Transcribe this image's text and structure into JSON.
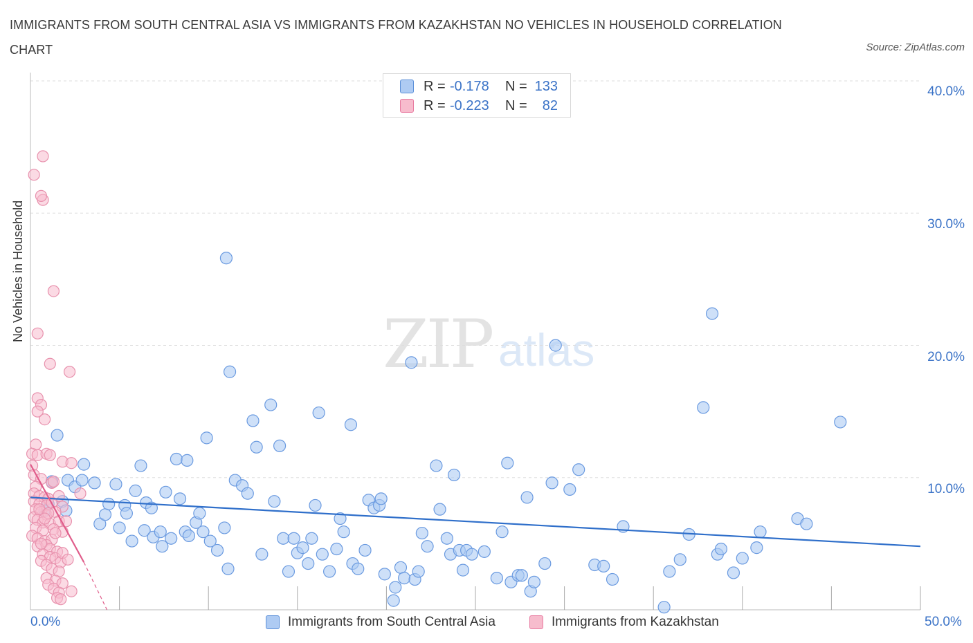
{
  "title": "IMMIGRANTS FROM SOUTH CENTRAL ASIA VS IMMIGRANTS FROM KAZAKHSTAN NO VEHICLES IN HOUSEHOLD CORRELATION CHART",
  "source": "Source: ZipAtlas.com",
  "watermark": {
    "zip": "ZIP",
    "atlas": "atlas"
  },
  "legend": {
    "r_label": "R =",
    "n_label": "N =",
    "rows": [
      {
        "r": "-0.178",
        "n": "133",
        "color": "#aecbf3",
        "border": "#5b8fd8"
      },
      {
        "r": "-0.223",
        "n": "82",
        "color": "#f7bccd",
        "border": "#e87aa0"
      }
    ]
  },
  "bottom_legend": [
    "Immigrants from South Central Asia",
    "Immigrants from Kazakhstan"
  ],
  "colors": {
    "blue_fill": "#aecbf3",
    "blue_stroke": "#6a9ae0",
    "blue_line": "#2f6fca",
    "pink_fill": "#f7bccd",
    "pink_stroke": "#e891ad",
    "pink_line": "#e05c8a",
    "tick_text": "#3b73c7",
    "grid": "#dddddd"
  },
  "chart_data": {
    "type": "scatter",
    "title": "IMMIGRANTS FROM SOUTH CENTRAL ASIA VS IMMIGRANTS FROM KAZAKHSTAN NO VEHICLES IN HOUSEHOLD CORRELATION CHART",
    "xlabel": "",
    "ylabel": "No Vehicles in Household",
    "xlim": [
      0,
      50
    ],
    "ylim": [
      0,
      40
    ],
    "x_tick_labels": [
      "0.0%",
      "50.0%"
    ],
    "y_ticks": [
      10,
      20,
      30,
      40
    ],
    "y_tick_labels": [
      "10.0%",
      "20.0%",
      "30.0%",
      "40.0%"
    ],
    "grid": true,
    "legend_position": "top-center",
    "series": [
      {
        "name": "Immigrants from South Central Asia",
        "r": -0.178,
        "n": 133,
        "trend": {
          "x": [
            0,
            50
          ],
          "y": [
            8.5,
            4.8
          ]
        },
        "points": [
          [
            1.5,
            13.2
          ],
          [
            1.0,
            8.0
          ],
          [
            0.8,
            7.5
          ],
          [
            1.2,
            9.7
          ],
          [
            1.8,
            8.2
          ],
          [
            2.0,
            7.5
          ],
          [
            2.1,
            9.8
          ],
          [
            2.5,
            9.3
          ],
          [
            2.9,
            9.8
          ],
          [
            3.0,
            11.0
          ],
          [
            3.6,
            9.6
          ],
          [
            3.9,
            6.5
          ],
          [
            4.2,
            7.2
          ],
          [
            4.4,
            8.0
          ],
          [
            4.8,
            9.5
          ],
          [
            5.0,
            6.2
          ],
          [
            5.3,
            7.9
          ],
          [
            5.4,
            7.3
          ],
          [
            5.7,
            5.2
          ],
          [
            5.9,
            9.0
          ],
          [
            6.2,
            10.9
          ],
          [
            6.4,
            6.0
          ],
          [
            6.5,
            8.1
          ],
          [
            6.8,
            7.7
          ],
          [
            6.9,
            5.5
          ],
          [
            7.3,
            5.9
          ],
          [
            7.4,
            4.8
          ],
          [
            7.6,
            8.9
          ],
          [
            7.9,
            5.4
          ],
          [
            8.2,
            11.4
          ],
          [
            8.4,
            8.4
          ],
          [
            8.7,
            5.9
          ],
          [
            8.8,
            11.3
          ],
          [
            8.9,
            5.6
          ],
          [
            9.3,
            6.6
          ],
          [
            9.5,
            7.3
          ],
          [
            9.7,
            5.9
          ],
          [
            9.9,
            13.0
          ],
          [
            10.1,
            5.2
          ],
          [
            10.5,
            4.5
          ],
          [
            10.9,
            6.2
          ],
          [
            11.1,
            3.1
          ],
          [
            11.2,
            18.0
          ],
          [
            11.0,
            26.6
          ],
          [
            11.5,
            9.8
          ],
          [
            11.9,
            9.4
          ],
          [
            12.2,
            8.8
          ],
          [
            12.5,
            14.3
          ],
          [
            12.7,
            12.3
          ],
          [
            13.0,
            4.2
          ],
          [
            13.5,
            15.5
          ],
          [
            13.7,
            8.2
          ],
          [
            14.0,
            12.4
          ],
          [
            14.2,
            5.4
          ],
          [
            14.5,
            2.9
          ],
          [
            14.8,
            5.4
          ],
          [
            15.0,
            4.3
          ],
          [
            15.3,
            4.7
          ],
          [
            15.6,
            3.5
          ],
          [
            15.8,
            5.4
          ],
          [
            16.0,
            7.9
          ],
          [
            16.2,
            14.9
          ],
          [
            16.4,
            4.2
          ],
          [
            16.8,
            2.9
          ],
          [
            17.2,
            4.6
          ],
          [
            17.4,
            6.9
          ],
          [
            17.6,
            5.9
          ],
          [
            18.0,
            14.0
          ],
          [
            18.1,
            3.5
          ],
          [
            18.4,
            3.1
          ],
          [
            18.8,
            4.5
          ],
          [
            19.0,
            8.3
          ],
          [
            19.3,
            7.7
          ],
          [
            19.6,
            7.9
          ],
          [
            19.7,
            8.4
          ],
          [
            19.9,
            2.7
          ],
          [
            20.4,
            0.7
          ],
          [
            20.5,
            1.7
          ],
          [
            20.8,
            3.2
          ],
          [
            21.0,
            2.4
          ],
          [
            21.4,
            18.7
          ],
          [
            21.6,
            2.3
          ],
          [
            21.8,
            2.9
          ],
          [
            22.0,
            5.8
          ],
          [
            22.3,
            4.8
          ],
          [
            22.8,
            10.9
          ],
          [
            23.0,
            7.6
          ],
          [
            23.4,
            5.4
          ],
          [
            23.6,
            4.2
          ],
          [
            23.8,
            10.2
          ],
          [
            24.1,
            4.5
          ],
          [
            24.3,
            3.0
          ],
          [
            24.5,
            4.5
          ],
          [
            24.8,
            4.2
          ],
          [
            25.5,
            4.4
          ],
          [
            26.2,
            2.4
          ],
          [
            26.5,
            5.9
          ],
          [
            26.8,
            11.1
          ],
          [
            27.0,
            2.1
          ],
          [
            27.4,
            2.6
          ],
          [
            27.6,
            2.6
          ],
          [
            27.9,
            8.5
          ],
          [
            28.1,
            1.4
          ],
          [
            28.3,
            2.1
          ],
          [
            28.9,
            3.5
          ],
          [
            29.3,
            9.6
          ],
          [
            29.5,
            20.0
          ],
          [
            30.3,
            9.1
          ],
          [
            30.8,
            10.6
          ],
          [
            31.7,
            3.4
          ],
          [
            32.2,
            3.3
          ],
          [
            32.7,
            2.3
          ],
          [
            33.3,
            6.3
          ],
          [
            36.5,
            3.8
          ],
          [
            35.9,
            2.9
          ],
          [
            35.6,
            0.2
          ],
          [
            37.8,
            15.3
          ],
          [
            37.0,
            5.7
          ],
          [
            38.3,
            22.4
          ],
          [
            38.6,
            4.2
          ],
          [
            38.8,
            4.6
          ],
          [
            39.5,
            2.8
          ],
          [
            40.0,
            3.9
          ],
          [
            40.8,
            4.7
          ],
          [
            41.0,
            5.9
          ],
          [
            43.1,
            6.9
          ],
          [
            43.6,
            6.5
          ],
          [
            45.5,
            14.2
          ]
        ]
      },
      {
        "name": "Immigrants from Kazakhstan",
        "r": -0.223,
        "n": 82,
        "trend": {
          "x": [
            0,
            3.0
          ],
          "y": [
            11.0,
            3.6
          ]
        },
        "trend_dashed": {
          "x": [
            3.0,
            4.3
          ],
          "y": [
            3.6,
            0.0
          ]
        },
        "points": [
          [
            0.2,
            32.9
          ],
          [
            0.7,
            31.0
          ],
          [
            0.6,
            31.3
          ],
          [
            0.7,
            34.3
          ],
          [
            1.3,
            24.1
          ],
          [
            0.4,
            20.9
          ],
          [
            1.1,
            18.6
          ],
          [
            2.2,
            18.0
          ],
          [
            0.4,
            16.0
          ],
          [
            0.6,
            15.5
          ],
          [
            0.4,
            15.0
          ],
          [
            0.8,
            14.4
          ],
          [
            0.3,
            12.5
          ],
          [
            0.1,
            11.8
          ],
          [
            0.4,
            11.7
          ],
          [
            0.9,
            11.8
          ],
          [
            1.1,
            11.7
          ],
          [
            1.8,
            11.2
          ],
          [
            2.3,
            11.1
          ],
          [
            0.1,
            10.9
          ],
          [
            0.2,
            10.2
          ],
          [
            0.6,
            9.9
          ],
          [
            1.2,
            9.6
          ],
          [
            1.3,
            9.7
          ],
          [
            0.3,
            9.3
          ],
          [
            0.2,
            8.8
          ],
          [
            0.5,
            8.6
          ],
          [
            0.8,
            8.5
          ],
          [
            1.0,
            8.4
          ],
          [
            1.6,
            8.6
          ],
          [
            2.8,
            8.8
          ],
          [
            0.2,
            8.2
          ],
          [
            0.5,
            8.0
          ],
          [
            0.9,
            7.9
          ],
          [
            1.2,
            8.1
          ],
          [
            1.8,
            7.8
          ],
          [
            0.3,
            7.6
          ],
          [
            0.6,
            7.4
          ],
          [
            0.9,
            7.2
          ],
          [
            1.4,
            7.4
          ],
          [
            0.2,
            7.0
          ],
          [
            0.4,
            6.8
          ],
          [
            0.7,
            6.6
          ],
          [
            1.1,
            6.5
          ],
          [
            1.6,
            6.7
          ],
          [
            2.0,
            6.7
          ],
          [
            0.3,
            6.2
          ],
          [
            0.7,
            6.0
          ],
          [
            1.3,
            6.1
          ],
          [
            1.8,
            5.9
          ],
          [
            0.1,
            5.6
          ],
          [
            0.4,
            5.4
          ],
          [
            0.8,
            5.2
          ],
          [
            1.2,
            5.3
          ],
          [
            0.4,
            4.8
          ],
          [
            0.9,
            4.9
          ],
          [
            1.1,
            4.6
          ],
          [
            1.5,
            4.4
          ],
          [
            0.7,
            4.2
          ],
          [
            1.1,
            4.0
          ],
          [
            1.4,
            3.9
          ],
          [
            1.7,
            3.6
          ],
          [
            0.6,
            3.7
          ],
          [
            0.9,
            3.4
          ],
          [
            1.2,
            3.1
          ],
          [
            1.6,
            2.9
          ],
          [
            0.9,
            2.4
          ],
          [
            1.4,
            2.2
          ],
          [
            1.8,
            2.0
          ],
          [
            1.0,
            1.9
          ],
          [
            1.3,
            1.6
          ],
          [
            1.6,
            1.3
          ],
          [
            2.3,
            1.4
          ],
          [
            1.5,
            0.9
          ],
          [
            1.7,
            0.8
          ],
          [
            0.5,
            7.6
          ],
          [
            1.0,
            7.3
          ],
          [
            0.8,
            6.9
          ],
          [
            1.4,
            5.8
          ],
          [
            0.6,
            5.0
          ],
          [
            1.8,
            4.3
          ],
          [
            2.1,
            3.8
          ]
        ]
      }
    ]
  }
}
